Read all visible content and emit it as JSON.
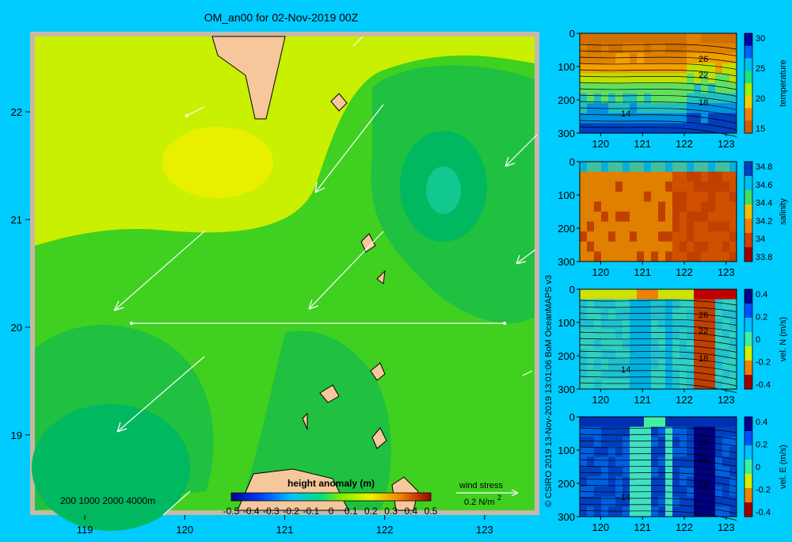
{
  "title": "OM_an00 for 02-Nov-2019 00Z",
  "credit": "© CSIRO 2019  13-Nov-2019 13:01:06 BoM OceanMAPS v3",
  "chart_data": [
    {
      "type": "contour-map",
      "title": "OM_an00 for 02-Nov-2019 00Z",
      "x_ticks": [
        "119",
        "120",
        "121",
        "122",
        "123"
      ],
      "y_ticks": [
        "22",
        "21",
        "20",
        "19"
      ],
      "xlim": [
        118.5,
        123.5
      ],
      "ylim": [
        18.3,
        22.7
      ],
      "section_line": {
        "lat": 20,
        "lon_start": 119.5,
        "lon_end": 123
      },
      "colorbar": {
        "label": "height anomaly  (m)",
        "ticks": [
          "-0.5",
          "-0.4",
          "-0.3",
          "-0.2",
          "-0.1",
          "0",
          "0.1",
          "0.2",
          "0.3",
          "0.4",
          "0.5"
        ]
      },
      "bathymetry_legend": [
        "200",
        "1000",
        "2000",
        "4000m"
      ],
      "wind_legend": {
        "label": "wind stress",
        "value": "0.2 N/m",
        "superscript": "2"
      },
      "colors": {
        "land": "#f5c79a",
        "frame": "#c8b8a8",
        "low": "#00b860",
        "mid": "#40d020",
        "high": "#c8f000",
        "peak": "#e8f000"
      }
    },
    {
      "type": "heatmap",
      "ylabel": "temperature",
      "x_ticks": [
        "120",
        "121",
        "122",
        "123"
      ],
      "y_ticks": [
        "0",
        "100",
        "200",
        "300"
      ],
      "cbar_ticks": [
        "30",
        "25",
        "20",
        "15"
      ],
      "contour_labels": [
        "26",
        "22",
        "18",
        "14"
      ]
    },
    {
      "type": "heatmap",
      "ylabel": "salinity",
      "x_ticks": [
        "120",
        "121",
        "122",
        "123"
      ],
      "y_ticks": [
        "0",
        "100",
        "200",
        "300"
      ],
      "cbar_ticks": [
        "34.8",
        "34.6",
        "34.4",
        "34.2",
        "34",
        "33.8"
      ],
      "contour_labels": []
    },
    {
      "type": "heatmap",
      "ylabel": "vel. N (m/s)",
      "x_ticks": [
        "120",
        "121",
        "122",
        "123"
      ],
      "y_ticks": [
        "0",
        "100",
        "200",
        "300"
      ],
      "cbar_ticks": [
        "0.4",
        "0.2",
        "0",
        "-0.2",
        "-0.4"
      ],
      "contour_labels": [
        "26",
        "22",
        "18",
        "14"
      ]
    },
    {
      "type": "heatmap",
      "ylabel": "vel. E (m/s)",
      "x_ticks": [
        "120",
        "121",
        "122",
        "123"
      ],
      "y_ticks": [
        "0",
        "100",
        "200",
        "300"
      ],
      "cbar_ticks": [
        "0.4",
        "0.2",
        "0",
        "-0.2",
        "-0.4"
      ],
      "contour_labels": [
        "26",
        "22",
        "18",
        "14"
      ]
    }
  ]
}
